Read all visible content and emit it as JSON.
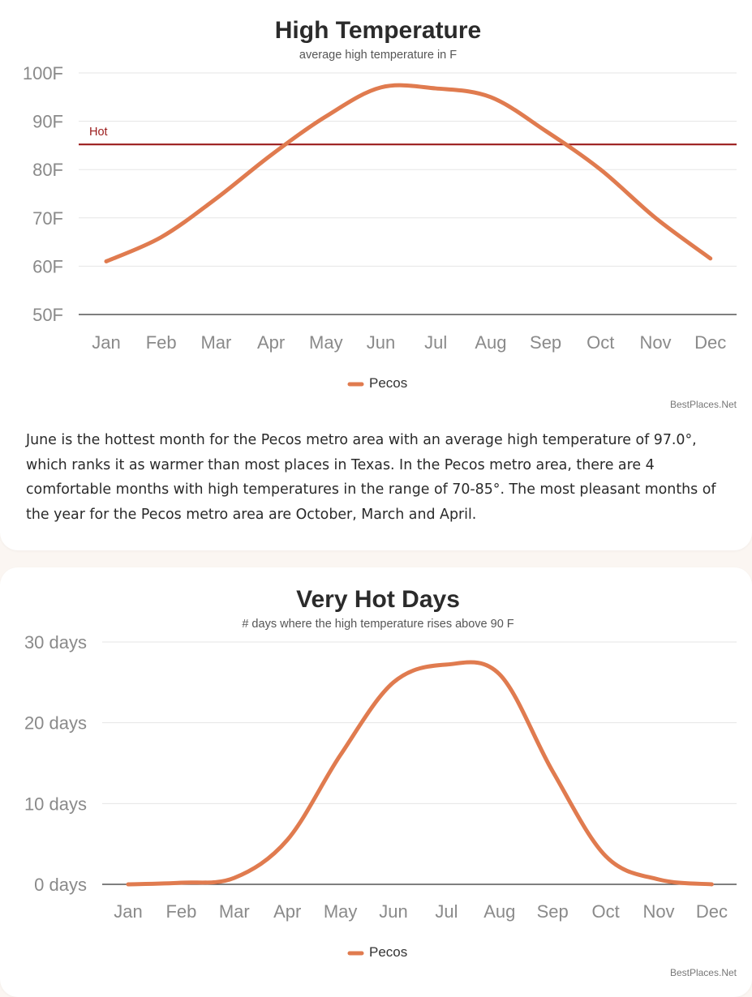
{
  "chart_data": [
    {
      "type": "line",
      "title": "High Temperature",
      "subtitle": "average high temperature in F",
      "categories": [
        "Jan",
        "Feb",
        "Mar",
        "Apr",
        "May",
        "Jun",
        "Jul",
        "Aug",
        "Sep",
        "Oct",
        "Nov",
        "Dec"
      ],
      "series": [
        {
          "name": "Pecos",
          "color": "#e07b4f",
          "values": [
            61,
            66,
            74,
            83,
            91,
            97,
            96.8,
            95,
            88,
            80,
            70,
            61.6
          ]
        }
      ],
      "ylim": [
        50,
        100
      ],
      "yticks": [
        50,
        60,
        70,
        80,
        90,
        100
      ],
      "ytick_labels": [
        "50F",
        "60F",
        "70F",
        "80F",
        "90F",
        "100F"
      ],
      "reference_line": {
        "label": "Hot",
        "value": 85.2,
        "color": "#9b1b1b"
      },
      "legend": "bottom",
      "grid": true,
      "credit": "BestPlaces.Net"
    },
    {
      "type": "line",
      "title": "Very Hot Days",
      "subtitle": "# days where the high temperature rises above 90 F",
      "categories": [
        "Jan",
        "Feb",
        "Mar",
        "Apr",
        "May",
        "Jun",
        "Jul",
        "Aug",
        "Sep",
        "Oct",
        "Nov",
        "Dec"
      ],
      "series": [
        {
          "name": "Pecos",
          "color": "#e07b4f",
          "values": [
            0,
            0.2,
            0.8,
            5.5,
            16,
            25,
            27.2,
            26,
            14,
            3.5,
            0.6,
            0
          ]
        }
      ],
      "ylim": [
        0,
        30
      ],
      "yticks": [
        0,
        10,
        20,
        30
      ],
      "ytick_labels": [
        "0 days",
        "10 days",
        "20 days",
        "30 days"
      ],
      "legend": "bottom",
      "grid": true,
      "credit": "BestPlaces.Net"
    }
  ],
  "description": "June is the hottest month for the Pecos metro area with an average high temperature of 97.0°, which ranks it as warmer than most places in Texas. In the Pecos metro area, there are 4 comfortable months with high temperatures in the range of 70-85°. The most pleasant months of the year for the Pecos metro area are October, March and April."
}
